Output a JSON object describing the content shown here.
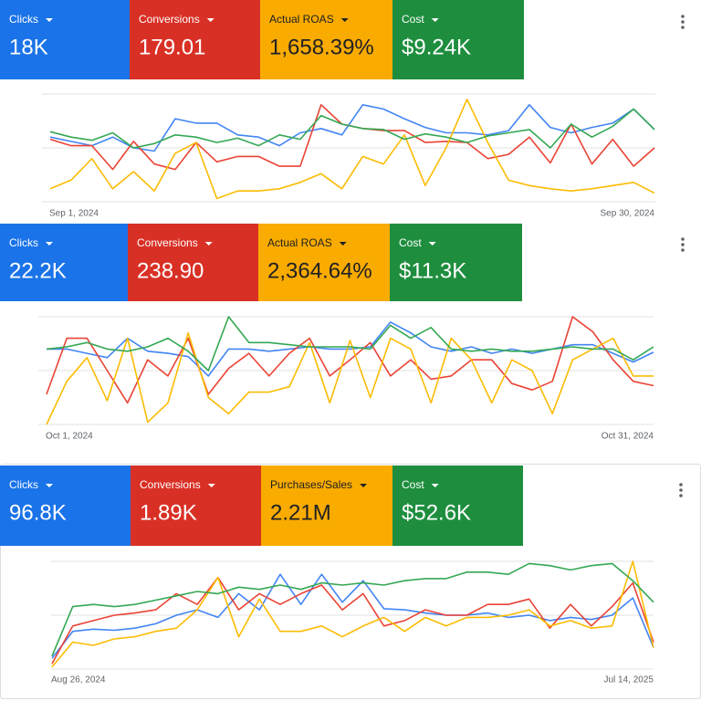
{
  "panels": [
    {
      "metrics": [
        {
          "label": "Clicks",
          "value": "18K",
          "color": "#1a73e8",
          "text_color": "#ffffff"
        },
        {
          "label": "Conversions",
          "value": "179.01",
          "color": "#d93025",
          "text_color": "#ffffff"
        },
        {
          "label": "Actual ROAS",
          "value": "1,658.39%",
          "color": "#f9ab00",
          "text_color": "#202124"
        },
        {
          "label": "Cost",
          "value": "$9.24K",
          "color": "#1e8e3e",
          "text_color": "#ffffff"
        }
      ],
      "chart": {
        "type": "line",
        "x_start": "Sep 1, 2024",
        "x_end": "Sep 30, 2024",
        "ylim": [
          0,
          100
        ],
        "series": [
          {
            "color": "#4285f4",
            "values": [
              60,
              56,
              52,
              60,
              50,
              47,
              77,
              73,
              73,
              62,
              60,
              52,
              64,
              68,
              62,
              90,
              86,
              77,
              69,
              64,
              64,
              62,
              66,
              90,
              69,
              64,
              69,
              73,
              86,
              67
            ]
          },
          {
            "color": "#ea4335",
            "values": [
              58,
              52,
              52,
              30,
              56,
              35,
              30,
              55,
              37,
              42,
              42,
              33,
              33,
              90,
              72,
              68,
              66,
              66,
              55,
              56,
              55,
              40,
              44,
              60,
              36,
              72,
              35,
              58,
              33,
              50
            ]
          },
          {
            "color": "#fbbc04",
            "values": [
              12,
              20,
              40,
              12,
              28,
              10,
              45,
              55,
              3,
              10,
              10,
              12,
              18,
              26,
              12,
              42,
              35,
              62,
              15,
              50,
              95,
              55,
              20,
              15,
              12,
              10,
              12,
              15,
              18,
              8
            ]
          },
          {
            "color": "#34a853",
            "values": [
              65,
              60,
              57,
              64,
              50,
              54,
              62,
              60,
              55,
              59,
              52,
              62,
              58,
              80,
              72,
              68,
              67,
              58,
              63,
              60,
              55,
              61,
              64,
              67,
              50,
              72,
              60,
              70,
              86,
              67
            ]
          }
        ]
      }
    },
    {
      "metrics": [
        {
          "label": "Clicks",
          "value": "22.2K",
          "color": "#1a73e8",
          "text_color": "#ffffff"
        },
        {
          "label": "Conversions",
          "value": "238.90",
          "color": "#d93025",
          "text_color": "#ffffff"
        },
        {
          "label": "Actual ROAS",
          "value": "2,364.64%",
          "color": "#f9ab00",
          "text_color": "#202124"
        },
        {
          "label": "Cost",
          "value": "$11.3K",
          "color": "#1e8e3e",
          "text_color": "#ffffff"
        }
      ],
      "chart": {
        "type": "line",
        "x_start": "Oct 1, 2024",
        "x_end": "Oct 31, 2024",
        "ylim": [
          0,
          100
        ],
        "series": [
          {
            "color": "#4285f4",
            "values": [
              70,
              70,
              66,
              62,
              80,
              68,
              66,
              63,
              45,
              70,
              70,
              68,
              70,
              72,
              70,
              70,
              72,
              95,
              85,
              72,
              68,
              72,
              66,
              70,
              66,
              70,
              74,
              74,
              66,
              58,
              67
            ]
          },
          {
            "color": "#ea4335",
            "values": [
              28,
              80,
              80,
              50,
              20,
              60,
              45,
              80,
              28,
              52,
              66,
              45,
              66,
              80,
              45,
              60,
              76,
              45,
              60,
              42,
              45,
              60,
              60,
              38,
              32,
              40,
              100,
              86,
              60,
              40,
              36
            ]
          },
          {
            "color": "#fbbc04",
            "values": [
              0,
              40,
              62,
              22,
              80,
              2,
              20,
              85,
              25,
              10,
              30,
              30,
              35,
              76,
              20,
              78,
              25,
              80,
              70,
              20,
              80,
              60,
              20,
              60,
              50,
              10,
              60,
              70,
              80,
              45,
              45
            ]
          },
          {
            "color": "#34a853",
            "values": [
              70,
              72,
              76,
              70,
              68,
              72,
              80,
              68,
              50,
              100,
              76,
              76,
              74,
              72,
              72,
              72,
              70,
              92,
              80,
              90,
              70,
              68,
              70,
              68,
              68,
              70,
              72,
              70,
              70,
              60,
              72
            ]
          }
        ]
      }
    },
    {
      "metrics": [
        {
          "label": "Clicks",
          "value": "96.8K",
          "color": "#1a73e8",
          "text_color": "#ffffff"
        },
        {
          "label": "Conversions",
          "value": "1.89K",
          "color": "#d93025",
          "text_color": "#ffffff"
        },
        {
          "label": "Purchases/Sales",
          "value": "2.21M",
          "color": "#f9ab00",
          "text_color": "#202124"
        },
        {
          "label": "Cost",
          "value": "$52.6K",
          "color": "#1e8e3e",
          "text_color": "#ffffff"
        }
      ],
      "chart": {
        "type": "line",
        "x_start": "Aug 26, 2024",
        "x_end": "Jul 14, 2025",
        "ylim": [
          0,
          100
        ],
        "series": [
          {
            "color": "#4285f4",
            "values": [
              10,
              35,
              37,
              36,
              38,
              42,
              50,
              55,
              48,
              70,
              55,
              88,
              60,
              88,
              62,
              82,
              56,
              55,
              52,
              50,
              50,
              52,
              48,
              50,
              45,
              48,
              46,
              50,
              66,
              20
            ]
          },
          {
            "color": "#ea4335",
            "values": [
              5,
              40,
              45,
              50,
              52,
              55,
              70,
              60,
              85,
              55,
              70,
              60,
              70,
              78,
              55,
              70,
              40,
              45,
              55,
              50,
              50,
              60,
              60,
              65,
              38,
              60,
              40,
              58,
              80,
              25
            ]
          },
          {
            "color": "#fbbc04",
            "values": [
              2,
              25,
              22,
              28,
              30,
              35,
              38,
              55,
              85,
              30,
              65,
              35,
              35,
              40,
              30,
              40,
              48,
              35,
              48,
              40,
              48,
              48,
              50,
              55,
              40,
              45,
              38,
              40,
              100,
              20
            ]
          },
          {
            "color": "#34a853",
            "values": [
              12,
              58,
              60,
              58,
              60,
              64,
              68,
              72,
              70,
              76,
              74,
              78,
              74,
              80,
              78,
              80,
              78,
              82,
              84,
              84,
              90,
              90,
              88,
              98,
              96,
              92,
              96,
              98,
              82,
              62
            ]
          }
        ]
      }
    }
  ]
}
